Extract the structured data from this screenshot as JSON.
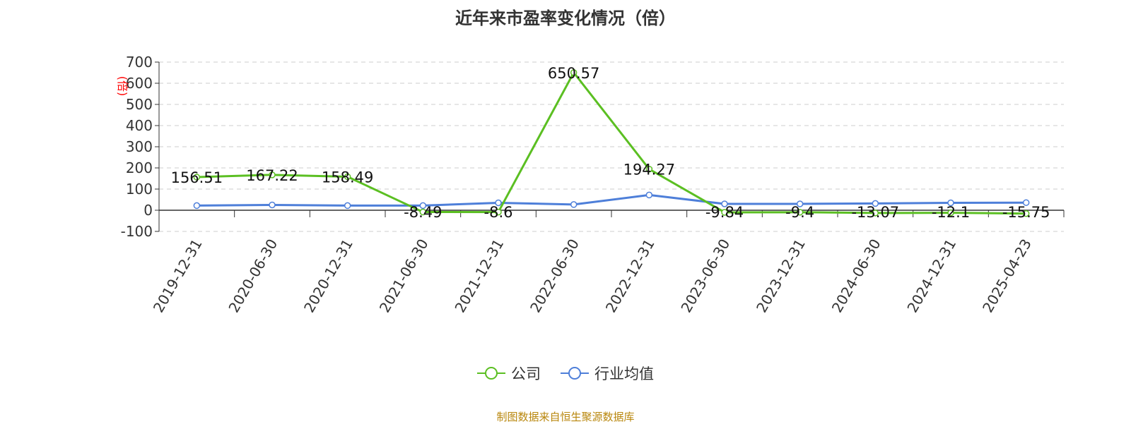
{
  "title": "近年来市盈率变化情况（倍）",
  "source_note": "制图数据来自恒生聚源数据库",
  "colors": {
    "company": "#5bbf22",
    "industry": "#4e7fd9",
    "axis": "#333333",
    "grid": "#cccccc",
    "unit": "#ff0000"
  },
  "chart_data": {
    "type": "line",
    "title": "近年来市盈率变化情况（倍）",
    "ylabel": "(倍)",
    "xlabel": "",
    "ylim": [
      -100,
      700
    ],
    "yticks": [
      -100,
      0,
      100,
      200,
      300,
      400,
      500,
      600,
      700
    ],
    "grid": true,
    "legend_position": "bottom",
    "categories": [
      "2019-12-31",
      "2020-06-30",
      "2020-12-31",
      "2021-06-30",
      "2021-12-31",
      "2022-06-30",
      "2022-12-31",
      "2023-06-30",
      "2023-12-31",
      "2024-06-30",
      "2024-12-31",
      "2025-04-23"
    ],
    "series": [
      {
        "name": "公司",
        "values": [
          156.51,
          167.22,
          158.49,
          -8.49,
          -8.6,
          650.57,
          194.27,
          -9.84,
          -9.4,
          -13.07,
          -12.1,
          -15.75
        ],
        "labels": [
          "156.51",
          "167.22",
          "158.49",
          "-8.49",
          "-8.6",
          "650.57",
          "194.27",
          "-9.84",
          "-9.4",
          "-13.07",
          "-12.1",
          "-15.75"
        ]
      },
      {
        "name": "行业均值",
        "values": [
          22,
          25,
          22,
          22,
          35,
          27,
          72,
          30,
          30,
          32,
          35,
          36
        ]
      }
    ]
  }
}
